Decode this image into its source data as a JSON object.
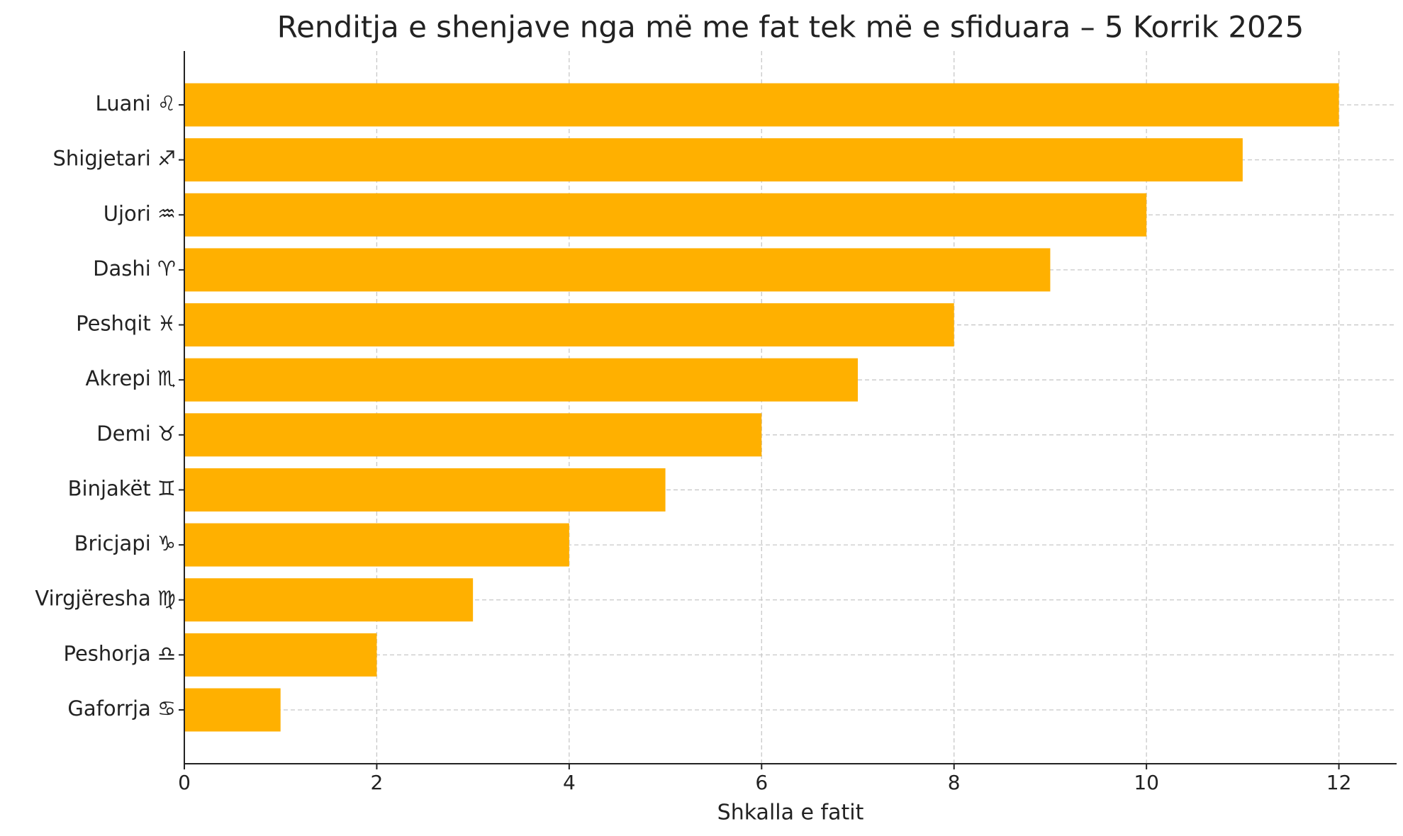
{
  "chart_data": {
    "type": "bar",
    "orientation": "horizontal",
    "title": "Renditja e shenjave nga më me fat tek më e sfiduara – 5 Korrik 2025",
    "x_label": "Shkalla e fatit",
    "categories": [
      "Luani ♌",
      "Shigjetari ♐",
      "Ujori ♒",
      "Dashi ♈",
      "Peshqit ♓",
      "Akrepi ♏",
      "Demi ♉",
      "Binjakët ♊",
      "Bricjapi ♑",
      "Virgjëresha ♍",
      "Peshorja ♎",
      "Gaforrja ♋"
    ],
    "values": [
      12,
      11,
      10,
      9,
      8,
      7,
      6,
      5,
      4,
      3,
      2,
      1
    ],
    "color": "#ffb000",
    "xlim": [
      0,
      12.6
    ],
    "xticks": [
      0,
      2,
      4,
      6,
      8,
      10,
      12
    ],
    "grid": true
  }
}
